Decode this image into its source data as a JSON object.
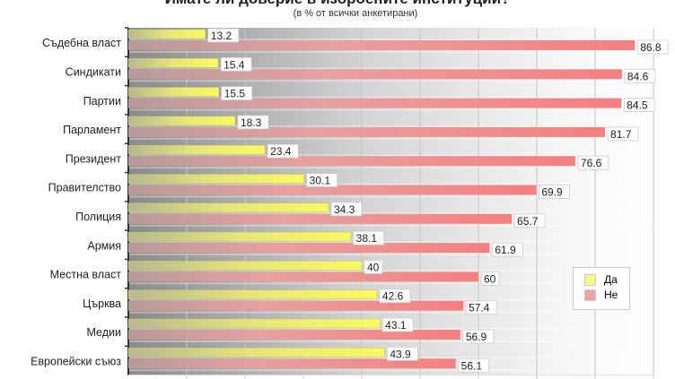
{
  "chart_data": {
    "type": "bar",
    "orientation": "horizontal",
    "title": "Имате ли доверие в изброените институции?",
    "subtitle": "(в % от всички анкетирани)",
    "categories": [
      "Съдебна власт",
      "Синдикати",
      "Партии",
      "Парламент",
      "Президент",
      "Правителство",
      "Полиция",
      "Армия",
      "Местна власт",
      "Църква",
      "Медии",
      "Европейски съюз"
    ],
    "series": [
      {
        "name": "Да",
        "color": "#f2f26a",
        "values": [
          13.2,
          15.4,
          15.5,
          18.3,
          23.4,
          30.1,
          34.3,
          38.1,
          40,
          42.6,
          43.1,
          43.9
        ]
      },
      {
        "name": "Не",
        "color": "#f48a8a",
        "values": [
          86.8,
          84.6,
          84.5,
          81.7,
          76.6,
          69.9,
          65.7,
          61.9,
          60,
          57.4,
          56.9,
          56.1
        ]
      }
    ],
    "xlim": [
      0,
      90
    ],
    "grid": true,
    "legend": "right"
  }
}
